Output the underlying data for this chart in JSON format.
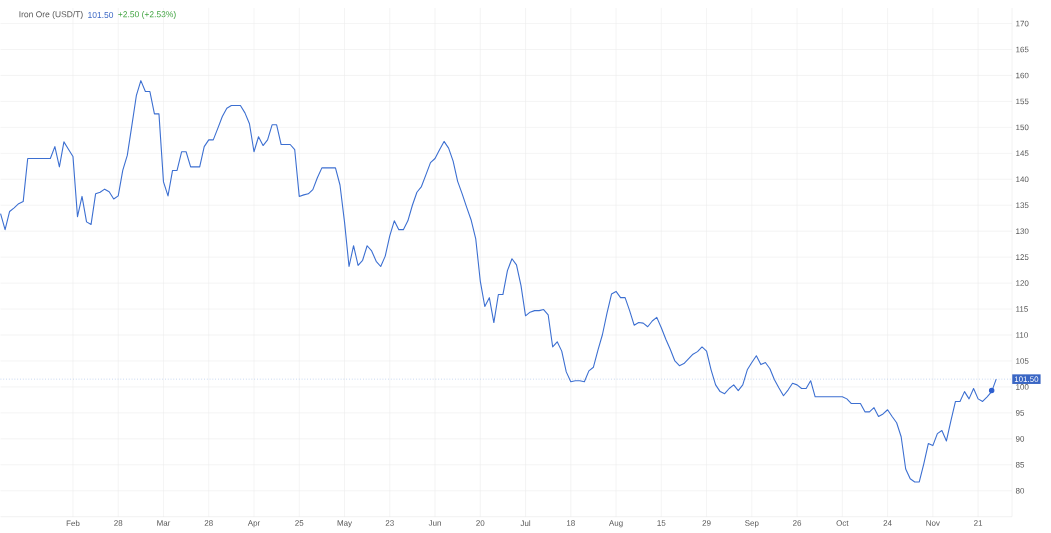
{
  "chart_data": {
    "type": "line",
    "title": "Iron Ore (USD/T)",
    "annotations": [
      "101.50",
      "+2.50 (+2.53%)"
    ],
    "categories": [
      null,
      null,
      null,
      null,
      null,
      null,
      null,
      null,
      null,
      null,
      null,
      null,
      null,
      null,
      null,
      null,
      "Feb",
      null,
      null,
      null,
      null,
      null,
      null,
      null,
      null,
      null,
      "28",
      null,
      null,
      null,
      null,
      null,
      null,
      null,
      null,
      null,
      "Mar",
      null,
      null,
      null,
      null,
      null,
      null,
      null,
      null,
      null,
      "28",
      null,
      null,
      null,
      null,
      null,
      null,
      null,
      null,
      null,
      "Apr",
      null,
      null,
      null,
      null,
      null,
      null,
      null,
      null,
      null,
      "25",
      null,
      null,
      null,
      null,
      null,
      null,
      null,
      null,
      null,
      "May",
      null,
      null,
      null,
      null,
      null,
      null,
      null,
      null,
      null,
      "23",
      null,
      null,
      null,
      null,
      null,
      null,
      null,
      null,
      null,
      "Jun",
      null,
      null,
      null,
      null,
      null,
      null,
      null,
      null,
      null,
      "20",
      null,
      null,
      null,
      null,
      null,
      null,
      null,
      null,
      null,
      "Jul",
      null,
      null,
      null,
      null,
      null,
      null,
      null,
      null,
      null,
      "18",
      null,
      null,
      null,
      null,
      null,
      null,
      null,
      null,
      null,
      "Aug",
      null,
      null,
      null,
      null,
      null,
      null,
      null,
      null,
      null,
      "15",
      null,
      null,
      null,
      null,
      null,
      null,
      null,
      null,
      null,
      "29",
      null,
      null,
      null,
      null,
      null,
      null,
      null,
      null,
      null,
      "Sep",
      null,
      null,
      null,
      null,
      null,
      null,
      null,
      null,
      null,
      "26",
      null,
      null,
      null,
      null,
      null,
      null,
      null,
      null,
      null,
      "Oct",
      null,
      null,
      null,
      null,
      null,
      null,
      null,
      null,
      null,
      "24",
      null,
      null,
      null,
      null,
      null,
      null,
      null,
      null,
      null,
      "Nov",
      null,
      null,
      null,
      null,
      null,
      null,
      null,
      null,
      null,
      "21",
      null,
      null,
      null,
      null
    ],
    "ylim": [
      75,
      173
    ],
    "yticks": [
      80,
      85,
      90,
      95,
      100,
      105,
      110,
      115,
      120,
      125,
      130,
      135,
      140,
      145,
      150,
      155,
      160,
      165,
      170
    ],
    "grid": true,
    "ref_lines": [
      {
        "axis": "y",
        "value": 101.5,
        "label": "101.50",
        "color": "#a9c3ea",
        "line_style": "dotted"
      }
    ],
    "series": [
      {
        "color": "#3c6fd1",
        "marker": "none",
        "line_style": "solid",
        "values": [
          133.4,
          130.3,
          133.8,
          134.5,
          135.3,
          135.7,
          144.0,
          144.0,
          144.0,
          144.0,
          144.0,
          144.0,
          146.3,
          142.4,
          147.2,
          145.8,
          144.4,
          132.8,
          136.7,
          131.8,
          131.3,
          137.2,
          137.5,
          138.1,
          137.6,
          136.2,
          136.8,
          141.7,
          144.6,
          150.3,
          156.1,
          159.0,
          156.9,
          156.9,
          152.6,
          152.6,
          139.5,
          136.8,
          141.7,
          141.7,
          145.3,
          145.3,
          142.4,
          142.4,
          142.4,
          146.3,
          147.6,
          147.6,
          149.8,
          152.1,
          153.7,
          154.2,
          154.2,
          154.2,
          152.8,
          150.7,
          145.3,
          148.2,
          146.5,
          147.6,
          150.5,
          150.5,
          146.7,
          146.7,
          146.7,
          145.7,
          136.7,
          137.0,
          137.2,
          138.0,
          140.3,
          142.2,
          142.2,
          142.2,
          142.2,
          138.9,
          131.8,
          123.2,
          127.2,
          123.4,
          124.4,
          127.2,
          126.2,
          124.2,
          123.2,
          125.2,
          129.1,
          132.0,
          130.3,
          130.3,
          132.0,
          135.0,
          137.5,
          138.6,
          140.9,
          143.2,
          144.0,
          145.7,
          147.3,
          146.0,
          143.5,
          139.6,
          137.2,
          134.6,
          132.1,
          128.5,
          120.4,
          115.5,
          117.2,
          112.4,
          117.8,
          117.8,
          122.4,
          124.7,
          123.5,
          119.5,
          113.7,
          114.4,
          114.7,
          114.7,
          114.9,
          113.9,
          107.7,
          108.7,
          106.9,
          102.9,
          101.0,
          101.2,
          101.2,
          101.0,
          103.1,
          103.8,
          107.1,
          110.1,
          114.2,
          117.9,
          118.4,
          117.2,
          117.2,
          114.7,
          111.9,
          112.4,
          112.3,
          111.6,
          112.7,
          113.4,
          111.4,
          109.2,
          107.2,
          105.0,
          104.1,
          104.5,
          105.4,
          106.3,
          106.8,
          107.7,
          106.9,
          103.3,
          100.4,
          99.1,
          98.7,
          99.7,
          100.4,
          99.3,
          100.4,
          103.3,
          104.7,
          106.0,
          104.3,
          104.7,
          103.5,
          101.4,
          99.8,
          98.3,
          99.4,
          100.7,
          100.4,
          99.7,
          99.7,
          101.2,
          98.1,
          98.1,
          98.1,
          98.1,
          98.1,
          98.1,
          98.1,
          97.7,
          96.8,
          96.8,
          96.8,
          95.2,
          95.2,
          96.0,
          94.3,
          94.8,
          95.6,
          94.3,
          93.1,
          90.4,
          84.2,
          82.3,
          81.7,
          81.7,
          85.2,
          89.1,
          88.7,
          91.0,
          91.6,
          89.6,
          93.5,
          97.2,
          97.2,
          99.1,
          97.7,
          99.7,
          97.7,
          97.2,
          98.1,
          99.1,
          101.5
        ]
      },
      {
        "type": "scatter",
        "color": "#2e5fcf",
        "marker": "circle",
        "values": [
          null,
          null,
          null,
          null,
          null,
          null,
          null,
          null,
          null,
          null,
          null,
          null,
          null,
          null,
          null,
          null,
          null,
          null,
          null,
          null,
          null,
          null,
          null,
          null,
          null,
          null,
          null,
          null,
          null,
          null,
          null,
          null,
          null,
          null,
          null,
          null,
          null,
          null,
          null,
          null,
          null,
          null,
          null,
          null,
          null,
          null,
          null,
          null,
          null,
          null,
          null,
          null,
          null,
          null,
          null,
          null,
          null,
          null,
          null,
          null,
          null,
          null,
          null,
          null,
          null,
          null,
          null,
          null,
          null,
          null,
          null,
          null,
          null,
          null,
          null,
          null,
          null,
          null,
          null,
          null,
          null,
          null,
          null,
          null,
          null,
          null,
          null,
          null,
          null,
          null,
          null,
          null,
          null,
          null,
          null,
          null,
          null,
          null,
          null,
          null,
          null,
          null,
          null,
          null,
          null,
          null,
          null,
          null,
          null,
          null,
          null,
          null,
          null,
          null,
          null,
          null,
          null,
          null,
          null,
          null,
          null,
          null,
          null,
          null,
          null,
          null,
          null,
          null,
          null,
          null,
          null,
          null,
          null,
          null,
          null,
          null,
          null,
          null,
          null,
          null,
          null,
          null,
          null,
          null,
          null,
          null,
          null,
          null,
          null,
          null,
          null,
          null,
          null,
          null,
          null,
          null,
          null,
          null,
          null,
          null,
          null,
          null,
          null,
          null,
          null,
          null,
          null,
          null,
          null,
          null,
          null,
          null,
          null,
          null,
          null,
          null,
          null,
          null,
          null,
          null,
          null,
          null,
          null,
          null,
          null,
          null,
          null,
          null,
          null,
          null,
          null,
          null,
          null,
          null,
          null,
          null,
          null,
          null,
          null,
          null,
          null,
          null,
          null,
          null,
          null,
          null,
          null,
          null,
          null,
          null,
          null,
          null,
          null,
          null,
          null,
          null,
          null,
          null,
          null,
          99.3,
          null
        ]
      }
    ]
  }
}
